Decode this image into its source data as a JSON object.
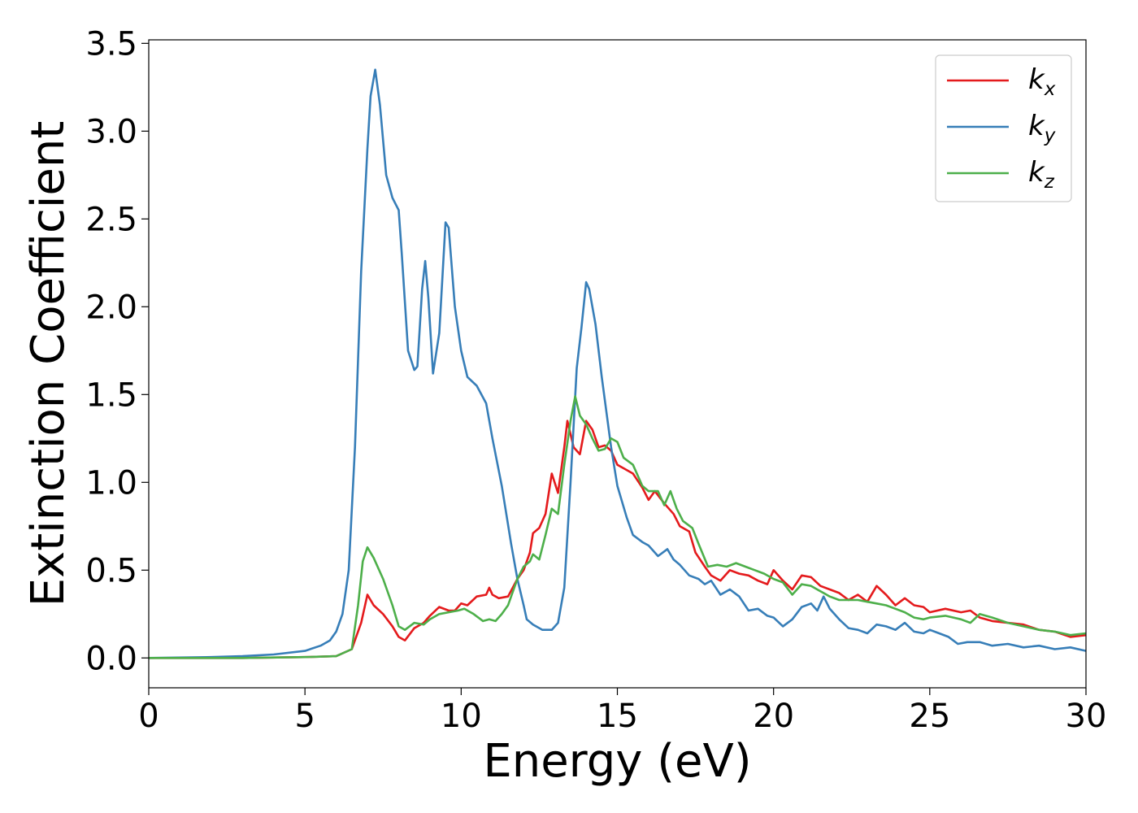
{
  "chart_data": {
    "type": "line",
    "title": "",
    "xlabel": "Energy (eV)",
    "ylabel": "Extinction Coefficient",
    "xlim": [
      0,
      30
    ],
    "ylim": [
      -0.17,
      3.52
    ],
    "xticks": [
      0,
      5,
      10,
      15,
      20,
      25,
      30
    ],
    "yticks": [
      0.0,
      0.5,
      1.0,
      1.5,
      2.0,
      2.5,
      3.0,
      3.5
    ],
    "xtick_labels": [
      "0",
      "5",
      "10",
      "15",
      "20",
      "25",
      "30"
    ],
    "ytick_labels": [
      "0.0",
      "0.5",
      "1.0",
      "1.5",
      "2.0",
      "2.5",
      "3.0",
      "3.5"
    ],
    "grid": false,
    "legend_position": "top-right",
    "series": [
      {
        "name": "k_x",
        "legend_base": "k",
        "legend_sub": "x",
        "color": "#e41a1c",
        "points": [
          [
            0,
            0
          ],
          [
            3,
            0.0
          ],
          [
            5,
            0.005
          ],
          [
            6,
            0.01
          ],
          [
            6.5,
            0.05
          ],
          [
            6.8,
            0.2
          ],
          [
            7.0,
            0.36
          ],
          [
            7.2,
            0.3
          ],
          [
            7.5,
            0.25
          ],
          [
            7.8,
            0.18
          ],
          [
            8.0,
            0.12
          ],
          [
            8.2,
            0.1
          ],
          [
            8.5,
            0.17
          ],
          [
            8.8,
            0.2
          ],
          [
            9.0,
            0.24
          ],
          [
            9.3,
            0.29
          ],
          [
            9.6,
            0.27
          ],
          [
            9.8,
            0.27
          ],
          [
            10.0,
            0.31
          ],
          [
            10.2,
            0.3
          ],
          [
            10.5,
            0.35
          ],
          [
            10.8,
            0.36
          ],
          [
            10.9,
            0.4
          ],
          [
            11.0,
            0.36
          ],
          [
            11.2,
            0.34
          ],
          [
            11.5,
            0.35
          ],
          [
            11.8,
            0.45
          ],
          [
            12.0,
            0.5
          ],
          [
            12.2,
            0.6
          ],
          [
            12.3,
            0.71
          ],
          [
            12.5,
            0.74
          ],
          [
            12.7,
            0.82
          ],
          [
            12.9,
            1.05
          ],
          [
            13.1,
            0.94
          ],
          [
            13.3,
            1.2
          ],
          [
            13.4,
            1.35
          ],
          [
            13.6,
            1.2
          ],
          [
            13.8,
            1.16
          ],
          [
            14.0,
            1.35
          ],
          [
            14.2,
            1.3
          ],
          [
            14.4,
            1.2
          ],
          [
            14.6,
            1.21
          ],
          [
            14.8,
            1.18
          ],
          [
            15.0,
            1.1
          ],
          [
            15.2,
            1.08
          ],
          [
            15.5,
            1.05
          ],
          [
            15.8,
            0.97
          ],
          [
            16.0,
            0.9
          ],
          [
            16.2,
            0.95
          ],
          [
            16.5,
            0.88
          ],
          [
            16.8,
            0.82
          ],
          [
            17.0,
            0.75
          ],
          [
            17.3,
            0.72
          ],
          [
            17.5,
            0.6
          ],
          [
            17.8,
            0.52
          ],
          [
            18.0,
            0.47
          ],
          [
            18.3,
            0.44
          ],
          [
            18.6,
            0.5
          ],
          [
            18.9,
            0.48
          ],
          [
            19.2,
            0.47
          ],
          [
            19.5,
            0.44
          ],
          [
            19.8,
            0.42
          ],
          [
            20.0,
            0.5
          ],
          [
            20.3,
            0.44
          ],
          [
            20.6,
            0.39
          ],
          [
            20.9,
            0.47
          ],
          [
            21.2,
            0.46
          ],
          [
            21.5,
            0.41
          ],
          [
            21.8,
            0.39
          ],
          [
            22.1,
            0.37
          ],
          [
            22.4,
            0.33
          ],
          [
            22.7,
            0.36
          ],
          [
            23.0,
            0.32
          ],
          [
            23.3,
            0.41
          ],
          [
            23.6,
            0.36
          ],
          [
            23.9,
            0.3
          ],
          [
            24.2,
            0.34
          ],
          [
            24.5,
            0.3
          ],
          [
            24.8,
            0.29
          ],
          [
            25.0,
            0.26
          ],
          [
            25.5,
            0.28
          ],
          [
            26.0,
            0.26
          ],
          [
            26.3,
            0.27
          ],
          [
            26.6,
            0.23
          ],
          [
            27.0,
            0.21
          ],
          [
            27.5,
            0.2
          ],
          [
            28.0,
            0.19
          ],
          [
            28.5,
            0.16
          ],
          [
            29.0,
            0.15
          ],
          [
            29.5,
            0.12
          ],
          [
            30.0,
            0.13
          ]
        ]
      },
      {
        "name": "k_y",
        "legend_base": "k",
        "legend_sub": "y",
        "color": "#377eb8",
        "points": [
          [
            0,
            0
          ],
          [
            2,
            0.005
          ],
          [
            3,
            0.01
          ],
          [
            4,
            0.02
          ],
          [
            5,
            0.04
          ],
          [
            5.5,
            0.07
          ],
          [
            5.8,
            0.1
          ],
          [
            6.0,
            0.15
          ],
          [
            6.2,
            0.25
          ],
          [
            6.4,
            0.5
          ],
          [
            6.6,
            1.2
          ],
          [
            6.8,
            2.2
          ],
          [
            7.0,
            2.9
          ],
          [
            7.1,
            3.2
          ],
          [
            7.25,
            3.35
          ],
          [
            7.4,
            3.15
          ],
          [
            7.6,
            2.75
          ],
          [
            7.8,
            2.62
          ],
          [
            8.0,
            2.55
          ],
          [
            8.1,
            2.3
          ],
          [
            8.3,
            1.75
          ],
          [
            8.5,
            1.64
          ],
          [
            8.6,
            1.66
          ],
          [
            8.75,
            2.1
          ],
          [
            8.85,
            2.26
          ],
          [
            8.95,
            2.05
          ],
          [
            9.1,
            1.62
          ],
          [
            9.3,
            1.85
          ],
          [
            9.5,
            2.48
          ],
          [
            9.6,
            2.45
          ],
          [
            9.8,
            2.0
          ],
          [
            10.0,
            1.75
          ],
          [
            10.2,
            1.6
          ],
          [
            10.5,
            1.55
          ],
          [
            10.8,
            1.45
          ],
          [
            11.0,
            1.25
          ],
          [
            11.3,
            0.98
          ],
          [
            11.6,
            0.65
          ],
          [
            11.8,
            0.45
          ],
          [
            12.0,
            0.3
          ],
          [
            12.1,
            0.22
          ],
          [
            12.3,
            0.19
          ],
          [
            12.6,
            0.16
          ],
          [
            12.9,
            0.16
          ],
          [
            13.1,
            0.2
          ],
          [
            13.3,
            0.4
          ],
          [
            13.5,
            1.0
          ],
          [
            13.7,
            1.65
          ],
          [
            13.85,
            1.88
          ],
          [
            14.0,
            2.14
          ],
          [
            14.1,
            2.1
          ],
          [
            14.3,
            1.9
          ],
          [
            14.5,
            1.6
          ],
          [
            14.8,
            1.2
          ],
          [
            15.0,
            0.98
          ],
          [
            15.3,
            0.8
          ],
          [
            15.5,
            0.7
          ],
          [
            15.8,
            0.66
          ],
          [
            16.0,
            0.64
          ],
          [
            16.3,
            0.58
          ],
          [
            16.6,
            0.62
          ],
          [
            16.8,
            0.56
          ],
          [
            17.0,
            0.53
          ],
          [
            17.3,
            0.47
          ],
          [
            17.6,
            0.45
          ],
          [
            17.8,
            0.42
          ],
          [
            18.0,
            0.44
          ],
          [
            18.3,
            0.36
          ],
          [
            18.6,
            0.39
          ],
          [
            18.9,
            0.35
          ],
          [
            19.2,
            0.27
          ],
          [
            19.5,
            0.28
          ],
          [
            19.8,
            0.24
          ],
          [
            20.0,
            0.23
          ],
          [
            20.3,
            0.18
          ],
          [
            20.6,
            0.22
          ],
          [
            20.9,
            0.29
          ],
          [
            21.2,
            0.31
          ],
          [
            21.4,
            0.27
          ],
          [
            21.6,
            0.35
          ],
          [
            21.8,
            0.28
          ],
          [
            22.1,
            0.22
          ],
          [
            22.4,
            0.17
          ],
          [
            22.7,
            0.16
          ],
          [
            23.0,
            0.14
          ],
          [
            23.3,
            0.19
          ],
          [
            23.6,
            0.18
          ],
          [
            23.9,
            0.16
          ],
          [
            24.2,
            0.2
          ],
          [
            24.5,
            0.15
          ],
          [
            24.8,
            0.14
          ],
          [
            25.0,
            0.16
          ],
          [
            25.3,
            0.14
          ],
          [
            25.6,
            0.12
          ],
          [
            25.9,
            0.08
          ],
          [
            26.2,
            0.09
          ],
          [
            26.6,
            0.09
          ],
          [
            27.0,
            0.07
          ],
          [
            27.5,
            0.08
          ],
          [
            28.0,
            0.06
          ],
          [
            28.5,
            0.07
          ],
          [
            29.0,
            0.05
          ],
          [
            29.5,
            0.06
          ],
          [
            30.0,
            0.04
          ]
        ]
      },
      {
        "name": "k_z",
        "legend_base": "k",
        "legend_sub": "z",
        "color": "#4daf4a",
        "points": [
          [
            0,
            0
          ],
          [
            3,
            0.0
          ],
          [
            5,
            0.005
          ],
          [
            6,
            0.01
          ],
          [
            6.5,
            0.05
          ],
          [
            6.7,
            0.3
          ],
          [
            6.85,
            0.55
          ],
          [
            7.0,
            0.63
          ],
          [
            7.2,
            0.57
          ],
          [
            7.5,
            0.45
          ],
          [
            7.8,
            0.3
          ],
          [
            8.0,
            0.18
          ],
          [
            8.2,
            0.16
          ],
          [
            8.5,
            0.2
          ],
          [
            8.8,
            0.19
          ],
          [
            9.0,
            0.22
          ],
          [
            9.3,
            0.25
          ],
          [
            9.6,
            0.26
          ],
          [
            9.9,
            0.27
          ],
          [
            10.1,
            0.28
          ],
          [
            10.4,
            0.25
          ],
          [
            10.7,
            0.21
          ],
          [
            10.9,
            0.22
          ],
          [
            11.1,
            0.21
          ],
          [
            11.3,
            0.25
          ],
          [
            11.5,
            0.3
          ],
          [
            11.8,
            0.45
          ],
          [
            12.0,
            0.52
          ],
          [
            12.2,
            0.55
          ],
          [
            12.3,
            0.59
          ],
          [
            12.5,
            0.56
          ],
          [
            12.7,
            0.7
          ],
          [
            12.9,
            0.85
          ],
          [
            13.1,
            0.82
          ],
          [
            13.3,
            1.1
          ],
          [
            13.5,
            1.35
          ],
          [
            13.65,
            1.49
          ],
          [
            13.8,
            1.38
          ],
          [
            14.0,
            1.33
          ],
          [
            14.2,
            1.25
          ],
          [
            14.4,
            1.18
          ],
          [
            14.6,
            1.19
          ],
          [
            14.8,
            1.25
          ],
          [
            15.0,
            1.23
          ],
          [
            15.2,
            1.14
          ],
          [
            15.5,
            1.1
          ],
          [
            15.8,
            0.98
          ],
          [
            16.0,
            0.95
          ],
          [
            16.3,
            0.95
          ],
          [
            16.5,
            0.87
          ],
          [
            16.7,
            0.95
          ],
          [
            16.9,
            0.85
          ],
          [
            17.1,
            0.78
          ],
          [
            17.4,
            0.74
          ],
          [
            17.6,
            0.65
          ],
          [
            17.9,
            0.52
          ],
          [
            18.2,
            0.53
          ],
          [
            18.5,
            0.52
          ],
          [
            18.8,
            0.54
          ],
          [
            19.1,
            0.52
          ],
          [
            19.4,
            0.5
          ],
          [
            19.7,
            0.48
          ],
          [
            20.0,
            0.45
          ],
          [
            20.3,
            0.43
          ],
          [
            20.6,
            0.36
          ],
          [
            20.9,
            0.42
          ],
          [
            21.2,
            0.41
          ],
          [
            21.5,
            0.38
          ],
          [
            21.8,
            0.35
          ],
          [
            22.1,
            0.33
          ],
          [
            22.4,
            0.33
          ],
          [
            22.7,
            0.33
          ],
          [
            23.0,
            0.32
          ],
          [
            23.3,
            0.31
          ],
          [
            23.6,
            0.3
          ],
          [
            23.9,
            0.28
          ],
          [
            24.2,
            0.26
          ],
          [
            24.5,
            0.23
          ],
          [
            24.8,
            0.22
          ],
          [
            25.0,
            0.23
          ],
          [
            25.5,
            0.24
          ],
          [
            26.0,
            0.22
          ],
          [
            26.3,
            0.2
          ],
          [
            26.6,
            0.25
          ],
          [
            27.0,
            0.23
          ],
          [
            27.5,
            0.2
          ],
          [
            28.0,
            0.18
          ],
          [
            28.5,
            0.16
          ],
          [
            29.0,
            0.15
          ],
          [
            29.5,
            0.13
          ],
          [
            30.0,
            0.14
          ]
        ]
      }
    ]
  }
}
